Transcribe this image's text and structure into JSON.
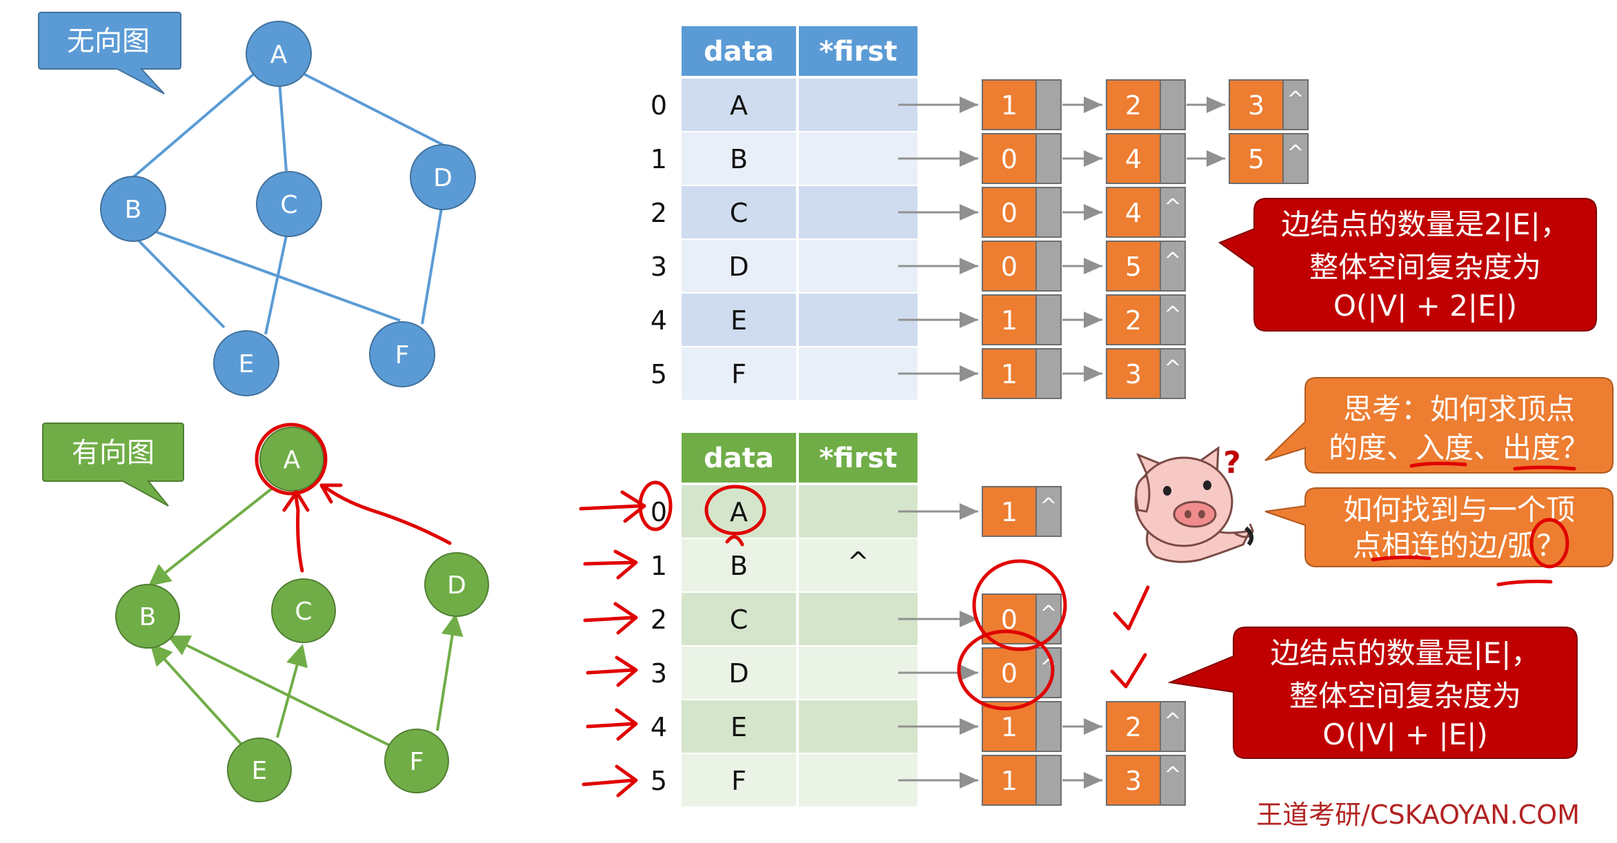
{
  "undirected": {
    "label": "无向图",
    "nodes": [
      "A",
      "B",
      "C",
      "D",
      "E",
      "F"
    ],
    "table": {
      "headers": [
        "data",
        "*first"
      ],
      "rows": [
        {
          "index": "0",
          "data": "A",
          "first": ""
        },
        {
          "index": "1",
          "data": "B",
          "first": ""
        },
        {
          "index": "2",
          "data": "C",
          "first": ""
        },
        {
          "index": "3",
          "data": "D",
          "first": ""
        },
        {
          "index": "4",
          "data": "E",
          "first": ""
        },
        {
          "index": "5",
          "data": "F",
          "first": ""
        }
      ]
    },
    "lists": [
      [
        "1",
        "2",
        "3"
      ],
      [
        "0",
        "4",
        "5"
      ],
      [
        "0",
        "4"
      ],
      [
        "0",
        "5"
      ],
      [
        "1",
        "2"
      ],
      [
        "1",
        "3"
      ]
    ],
    "callout": [
      "边结点的数量是2|E|，",
      "整体空间复杂度为",
      "O(|V| + 2|E|)"
    ]
  },
  "directed": {
    "label": "有向图",
    "nodes": [
      "A",
      "B",
      "C",
      "D",
      "E",
      "F"
    ],
    "table": {
      "headers": [
        "data",
        "*first"
      ],
      "rows": [
        {
          "index": "0",
          "data": "A",
          "first": ""
        },
        {
          "index": "1",
          "data": "B",
          "first": "^"
        },
        {
          "index": "2",
          "data": "C",
          "first": ""
        },
        {
          "index": "3",
          "data": "D",
          "first": ""
        },
        {
          "index": "4",
          "data": "E",
          "first": ""
        },
        {
          "index": "5",
          "data": "F",
          "first": ""
        }
      ]
    },
    "lists": [
      [
        "1"
      ],
      [],
      [
        "0"
      ],
      [
        "0"
      ],
      [
        "1",
        "2"
      ],
      [
        "1",
        "3"
      ]
    ],
    "callout": [
      "边结点的数量是|E|，",
      "整体空间复杂度为",
      "O(|V| + |E|)"
    ]
  },
  "null_symbol": "^",
  "questions": [
    [
      "思考：如何求顶点",
      "的度、入度、出度？"
    ],
    [
      "如何找到与一个顶",
      "点相连的边/弧？"
    ]
  ],
  "mascot": {
    "icon": "pig-icon",
    "mark": "?"
  },
  "colors": {
    "undirected_node": "#5b9bd5",
    "directed_node": "#70ad47",
    "edge_node": "#ed7d31",
    "pointer_cell": "#a5a5a5",
    "callout_red": "#c00000",
    "callout_orange": "#ed7d31",
    "annotation": "#e00000"
  },
  "footer": "王道考研/CSKAOYAN.COM"
}
